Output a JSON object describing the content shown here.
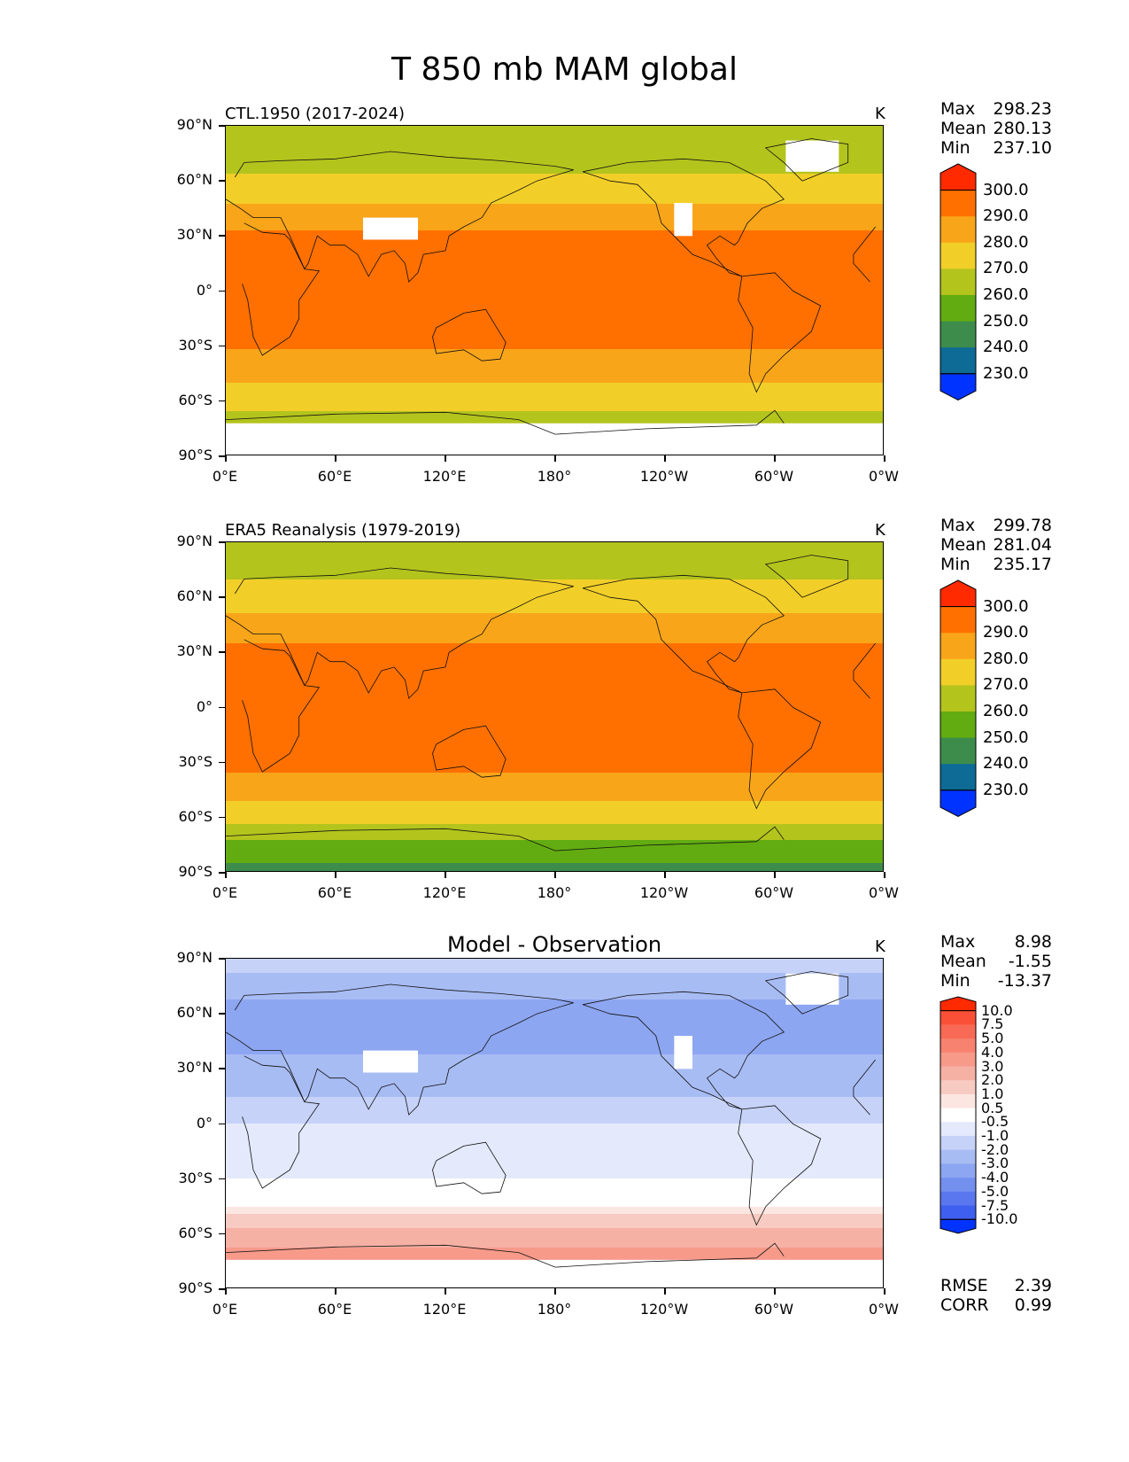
{
  "figure_title": "T 850 mb MAM global",
  "axes": {
    "lat_ticks": [
      "90°N",
      "60°N",
      "30°N",
      "0°",
      "30°S",
      "60°S",
      "90°S"
    ],
    "lon_ticks": [
      "0°E",
      "60°E",
      "120°E",
      "180°",
      "120°W",
      "60°W",
      "0°W"
    ]
  },
  "panels": [
    {
      "title": "CTL.1950 (2017-2024)",
      "units": "K",
      "stats": [
        {
          "label": "Max",
          "value": "298.23"
        },
        {
          "label": "Mean",
          "value": "280.13"
        },
        {
          "label": "Min",
          "value": "237.10"
        }
      ]
    },
    {
      "title": "ERA5 Reanalysis (1979-2019)",
      "units": "K",
      "stats": [
        {
          "label": "Max",
          "value": "299.78"
        },
        {
          "label": "Mean",
          "value": "281.04"
        },
        {
          "label": "Min",
          "value": "235.17"
        }
      ]
    },
    {
      "title": "Model - Observation",
      "units": "K",
      "stats": [
        {
          "label": "Max",
          "value": "8.98"
        },
        {
          "label": "Mean",
          "value": "-1.55"
        },
        {
          "label": "Min",
          "value": "-13.37"
        }
      ],
      "error_stats": [
        {
          "label": "RMSE",
          "value": "2.39"
        },
        {
          "label": "CORR",
          "value": "0.99"
        }
      ]
    }
  ],
  "colorbar_abs": {
    "labels": [
      "300.0",
      "290.0",
      "280.0",
      "270.0",
      "260.0",
      "250.0",
      "240.0",
      "230.0"
    ],
    "colors": [
      "#ff2a00",
      "#ff7000",
      "#f9a51a",
      "#f2cf28",
      "#b3c41d",
      "#62ac11",
      "#3d8c4c",
      "#0d6b96",
      "#0033ff"
    ]
  },
  "colorbar_diff": {
    "labels": [
      "10.0",
      "7.5",
      "5.0",
      "4.0",
      "3.0",
      "2.0",
      "1.0",
      "0.5",
      "-0.5",
      "-1.0",
      "-2.0",
      "-3.0",
      "-4.0",
      "-5.0",
      "-7.5",
      "-10.0"
    ],
    "colors": [
      "#ff2a00",
      "#fb5038",
      "#f86a55",
      "#f7826f",
      "#f79a8a",
      "#f6b1a5",
      "#f7cbc1",
      "#fbe6e1",
      "#ffffff",
      "#e4e9fc",
      "#c6d2f8",
      "#a8bcf4",
      "#8da6f1",
      "#7390ef",
      "#5a77ef",
      "#3f5ff1",
      "#0033ff"
    ]
  },
  "chart_data": [
    {
      "type": "heatmap",
      "title": "CTL.1950 (2017-2024)",
      "units": "K",
      "xlim": [
        0,
        360
      ],
      "ylim": [
        -90,
        90
      ],
      "levels": [
        220,
        230,
        240,
        250,
        260,
        270,
        280,
        290,
        300,
        310
      ],
      "zonal_profile": {
        "lat": [
          90,
          75,
          60,
          45,
          30,
          15,
          0,
          -15,
          -30,
          -45,
          -60,
          -75,
          -90
        ],
        "value": [
          252,
          255,
          262,
          272,
          282,
          286,
          287,
          286,
          281,
          273,
          263,
          255,
          250
        ]
      }
    },
    {
      "type": "heatmap",
      "title": "ERA5 Reanalysis (1979-2019)",
      "units": "K",
      "xlim": [
        0,
        360
      ],
      "ylim": [
        -90,
        90
      ],
      "levels": [
        220,
        230,
        240,
        250,
        260,
        270,
        280,
        290,
        300,
        310
      ],
      "zonal_profile": {
        "lat": [
          90,
          75,
          60,
          45,
          30,
          15,
          0,
          -15,
          -30,
          -45,
          -60,
          -75,
          -90
        ],
        "value": [
          253,
          258,
          264,
          274,
          283,
          288,
          289,
          288,
          283,
          274,
          264,
          247,
          236
        ]
      }
    },
    {
      "type": "heatmap",
      "title": "Model - Observation",
      "units": "K",
      "xlim": [
        0,
        360
      ],
      "ylim": [
        -90,
        90
      ],
      "levels": [
        -10,
        -7.5,
        -5,
        -4,
        -3,
        -2,
        -1,
        -0.5,
        0.5,
        1,
        2,
        3,
        4,
        5,
        7.5,
        10
      ],
      "zonal_profile": {
        "lat": [
          90,
          75,
          60,
          45,
          30,
          15,
          0,
          -15,
          -30,
          -45,
          -60,
          -75,
          -90
        ],
        "value": [
          -1.5,
          -2.5,
          -3.5,
          -3.5,
          -2.5,
          -2,
          -1,
          -1,
          -0.5,
          0.5,
          2.5,
          3.5,
          2
        ]
      }
    }
  ]
}
